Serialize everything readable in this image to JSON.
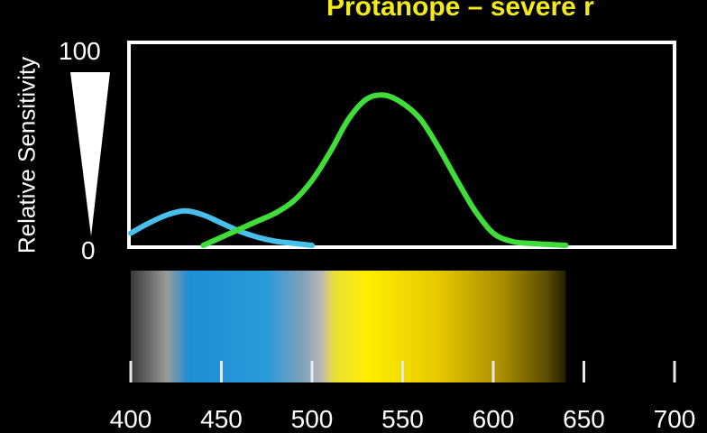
{
  "chart_data": {
    "type": "line",
    "title": "Protanope – severe r",
    "ylabel": "Relative Sensitivity",
    "xlabel": "",
    "xlim": [
      400,
      700
    ],
    "ylim": [
      0,
      100
    ],
    "y_tick_labels": [
      "0",
      "100"
    ],
    "x_tick_labels": [
      "400",
      "450",
      "500",
      "550",
      "600",
      "650",
      "700"
    ],
    "x_ticks": [
      400,
      450,
      500,
      550,
      600,
      650,
      700
    ],
    "grid": false,
    "legend": "none",
    "series": [
      {
        "color": "#47bfea",
        "x": [
          400,
          410,
          420,
          430,
          440,
          450,
          460,
          470,
          480,
          490,
          500
        ],
        "y": [
          6,
          11,
          15,
          17,
          15,
          11,
          7,
          4,
          2,
          1,
          0
        ]
      },
      {
        "color": "#3fdc3a",
        "x": [
          440,
          450,
          460,
          470,
          480,
          490,
          500,
          510,
          520,
          530,
          540,
          550,
          560,
          570,
          580,
          590,
          600,
          610,
          620,
          640
        ],
        "y": [
          0,
          4,
          8,
          12,
          16,
          22,
          32,
          46,
          62,
          72,
          74,
          70,
          62,
          48,
          32,
          17,
          6,
          2,
          1,
          0
        ]
      }
    ],
    "spectrum_bar": {
      "range": [
        400,
        640
      ],
      "stops": [
        {
          "nm": 400,
          "color": "#3a3a3a"
        },
        {
          "nm": 420,
          "color": "#9a9a9a"
        },
        {
          "nm": 432,
          "color": "#1e8fd6"
        },
        {
          "nm": 475,
          "color": "#2a9ad8"
        },
        {
          "nm": 495,
          "color": "#7fa2b8"
        },
        {
          "nm": 505,
          "color": "#b8b8b8"
        },
        {
          "nm": 512,
          "color": "#eadf3a"
        },
        {
          "nm": 530,
          "color": "#ffef00"
        },
        {
          "nm": 570,
          "color": "#e6c800"
        },
        {
          "nm": 605,
          "color": "#a88e00"
        },
        {
          "nm": 630,
          "color": "#5a4c00"
        },
        {
          "nm": 640,
          "color": "#221d00"
        }
      ]
    },
    "sensitivity_wedge_color": "#ffffff",
    "frame_color": "#ffffff"
  }
}
